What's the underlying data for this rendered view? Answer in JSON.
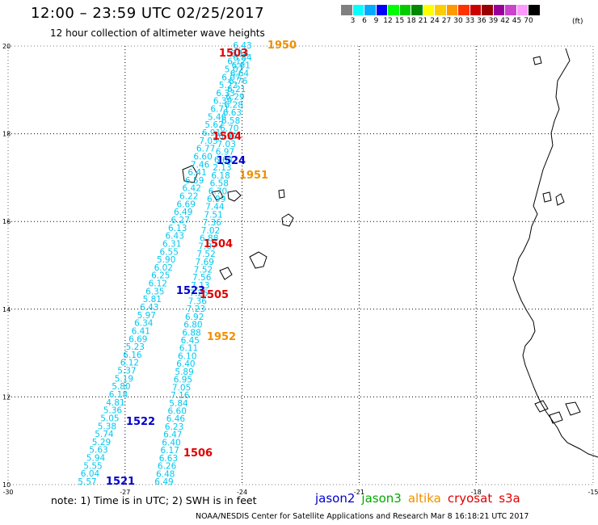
{
  "title": "12:00 – 23:59 UTC 02/25/2017",
  "subtitle": "12 hour collection of altimeter wave heights",
  "legend": {
    "colors": [
      "#808080",
      "#00ffff",
      "#00aaff",
      "#0000ff",
      "#00ff00",
      "#00cc00",
      "#008800",
      "#ffff00",
      "#ffcc00",
      "#ff9900",
      "#ff3300",
      "#cc0000",
      "#990000",
      "#990099",
      "#cc44cc",
      "#ff99ff",
      "#000000"
    ],
    "ticks": [
      "3",
      "6",
      "9",
      "12",
      "15",
      "18",
      "21",
      "24",
      "27",
      "30",
      "33",
      "36",
      "39",
      "42",
      "45",
      "70"
    ],
    "unit": "(ft)"
  },
  "map": {
    "lon_ticks": [
      "-30",
      "-27",
      "-24",
      "-21",
      "-18",
      "-15"
    ],
    "lat_ticks": [
      "10",
      "12",
      "14",
      "16",
      "18",
      "20"
    ],
    "grid": "dotted"
  },
  "swh_values_track_a": [
    "6.43",
    "6.14",
    "6.12",
    "5.07",
    "6.07",
    "5.22",
    "6.33",
    "6.39",
    "6.71",
    "5.46",
    "5.62",
    "6.91",
    "7.05",
    "6.77",
    "6.60",
    "7.46",
    "6.41",
    "6.59",
    "6.42",
    "6.22",
    "6.69",
    "6.49",
    "6.27",
    "6.13",
    "6.43",
    "6.31",
    "6.55",
    "5.90",
    "6.02",
    "6.25",
    "6.12",
    "6.35",
    "5.81",
    "6.43",
    "5.97",
    "6.34",
    "6.41",
    "6.69",
    "5.23",
    "6.16",
    "6.12",
    "5.37",
    "5.19",
    "5.80",
    "6.18",
    "4.81",
    "5.36",
    "5.05",
    "5.38",
    "5.74",
    "5.29",
    "5.63",
    "5.94",
    "5.55",
    "6.04",
    "5.57"
  ],
  "swh_values_track_b": [
    "6.84",
    "6.61",
    "6.64",
    "6.76",
    "6.21",
    "6.29",
    "6.28",
    "6.63",
    "6.58",
    "6.70",
    "6.90",
    "7.03",
    "6.97",
    "6.64",
    "2.13",
    "6.18",
    "6.58",
    "6.70",
    "6.99",
    "7.44",
    "7.51",
    "7.36",
    "7.02",
    "6.88",
    "7.07",
    "7.52",
    "7.69",
    "7.52",
    "7.56",
    "7.13",
    "7.25",
    "7.36",
    "7.23",
    "6.92",
    "6.80",
    "6.88",
    "6.45",
    "6.11",
    "6.10",
    "6.40",
    "5.89",
    "6.95",
    "7.05",
    "7.16",
    "5.84",
    "6.60",
    "6.46",
    "6.23",
    "6.47",
    "6.40",
    "6.17",
    "6.63",
    "6.26",
    "6.48",
    "6.49"
  ],
  "passes": [
    {
      "label": "1503",
      "color": "#e00000"
    },
    {
      "label": "1950",
      "color": "#f09000"
    },
    {
      "label": "1504",
      "color": "#e00000"
    },
    {
      "label": "1524",
      "color": "#0000cc"
    },
    {
      "label": "1951",
      "color": "#f09000"
    },
    {
      "label": "1504",
      "color": "#e00000"
    },
    {
      "label": "1523",
      "color": "#0000cc"
    },
    {
      "label": "1505",
      "color": "#e00000"
    },
    {
      "label": "1952",
      "color": "#f09000"
    },
    {
      "label": "1522",
      "color": "#0000cc"
    },
    {
      "label": "1506",
      "color": "#e00000"
    },
    {
      "label": "1521",
      "color": "#0000cc"
    }
  ],
  "note": "note:  1) Time is in UTC;  2) SWH is in feet",
  "satellites": [
    {
      "name": "jason2",
      "color": "#0000cc"
    },
    {
      "name": "jason3",
      "color": "#00aa00"
    },
    {
      "name": "altika",
      "color": "#f09000"
    },
    {
      "name": "cryosat",
      "color": "#e00000"
    },
    {
      "name": "s3a",
      "color": "#e00000"
    }
  ],
  "credit": "NOAA/NESDIS Center for Satellite Applications and Research    Mar  8 16:18:21 UTC 2017"
}
